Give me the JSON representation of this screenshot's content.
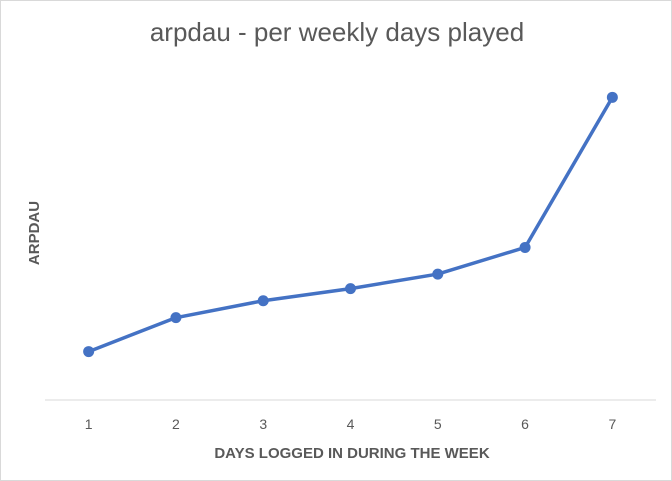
{
  "chart_data": {
    "type": "line",
    "title": "arpdau - per weekly days played",
    "xlabel": "DAYS LOGGED  IN DURING THE WEEK",
    "ylabel": "ARPDAU",
    "categories": [
      "1",
      "2",
      "3",
      "4",
      "5",
      "6",
      "7"
    ],
    "series": [
      {
        "values": [
          0.2,
          0.34,
          0.41,
          0.46,
          0.52,
          0.63,
          1.25
        ],
        "color": "#4472c4"
      }
    ],
    "ylim": [
      0,
      1.4
    ],
    "y_tick_labels_shown": false,
    "grid": false,
    "legend": "none",
    "markers": "circle"
  }
}
